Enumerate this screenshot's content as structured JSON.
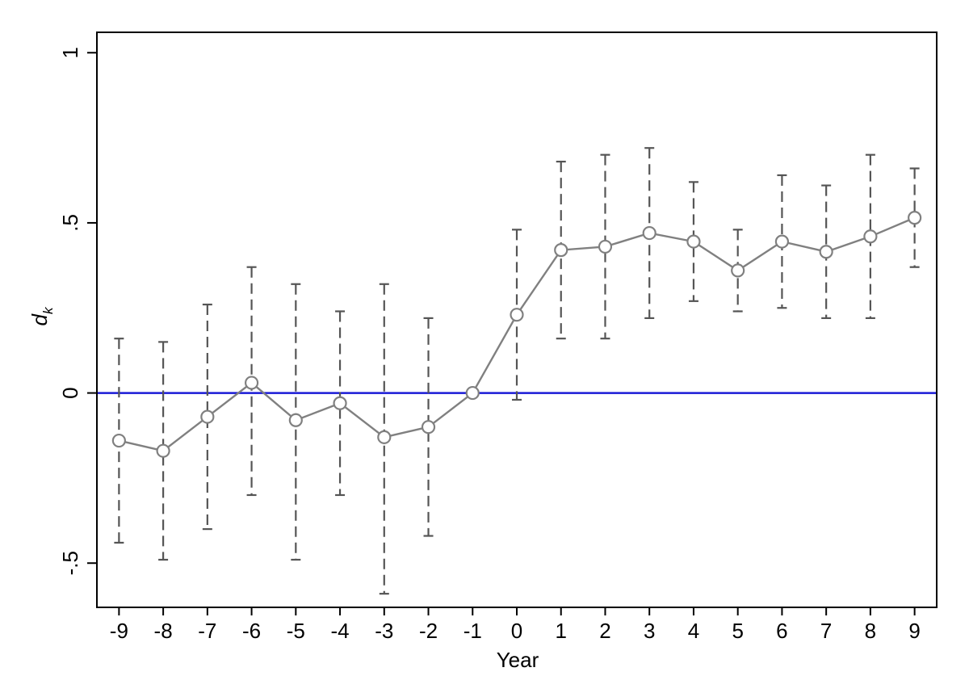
{
  "chart_data": {
    "type": "line",
    "xlabel": "Year",
    "ylabel": "d",
    "ylabel_subscript": "k",
    "x": [
      -9,
      -8,
      -7,
      -6,
      -5,
      -4,
      -3,
      -2,
      -1,
      0,
      1,
      2,
      3,
      4,
      5,
      6,
      7,
      8,
      9
    ],
    "xlim": [
      -9.5,
      9.5
    ],
    "ylim": [
      -0.63,
      1.06
    ],
    "x_ticks": [
      "-9",
      "-8",
      "-7",
      "-6",
      "-5",
      "-4",
      "-3",
      "-2",
      "-1",
      "0",
      "1",
      "2",
      "3",
      "4",
      "5",
      "6",
      "7",
      "8",
      "9"
    ],
    "y_ticks": [
      {
        "value": -0.5,
        "label": "-.5"
      },
      {
        "value": 0,
        "label": "0"
      },
      {
        "value": 0.5,
        "label": ".5"
      },
      {
        "value": 1,
        "label": "1"
      }
    ],
    "grid": false,
    "reference_line": {
      "y": 0,
      "color": "#1a1ad6"
    },
    "series": [
      {
        "values": [
          -0.14,
          -0.17,
          -0.07,
          0.03,
          -0.08,
          -0.03,
          -0.13,
          -0.1,
          0.0,
          0.23,
          0.42,
          0.43,
          0.47,
          0.445,
          0.36,
          0.445,
          0.415,
          0.46,
          0.515
        ],
        "ci_lower": [
          -0.44,
          -0.49,
          -0.4,
          -0.3,
          -0.49,
          -0.3,
          -0.59,
          -0.42,
          0.0,
          -0.02,
          0.16,
          0.16,
          0.22,
          0.27,
          0.24,
          0.25,
          0.22,
          0.22,
          0.37
        ],
        "ci_upper": [
          0.16,
          0.15,
          0.26,
          0.37,
          0.32,
          0.24,
          0.32,
          0.22,
          0.0,
          0.48,
          0.68,
          0.7,
          0.72,
          0.62,
          0.48,
          0.64,
          0.61,
          0.7,
          0.66
        ],
        "color": "#808080",
        "ci_color": "#555555",
        "marker": "hollow-circle"
      }
    ]
  }
}
